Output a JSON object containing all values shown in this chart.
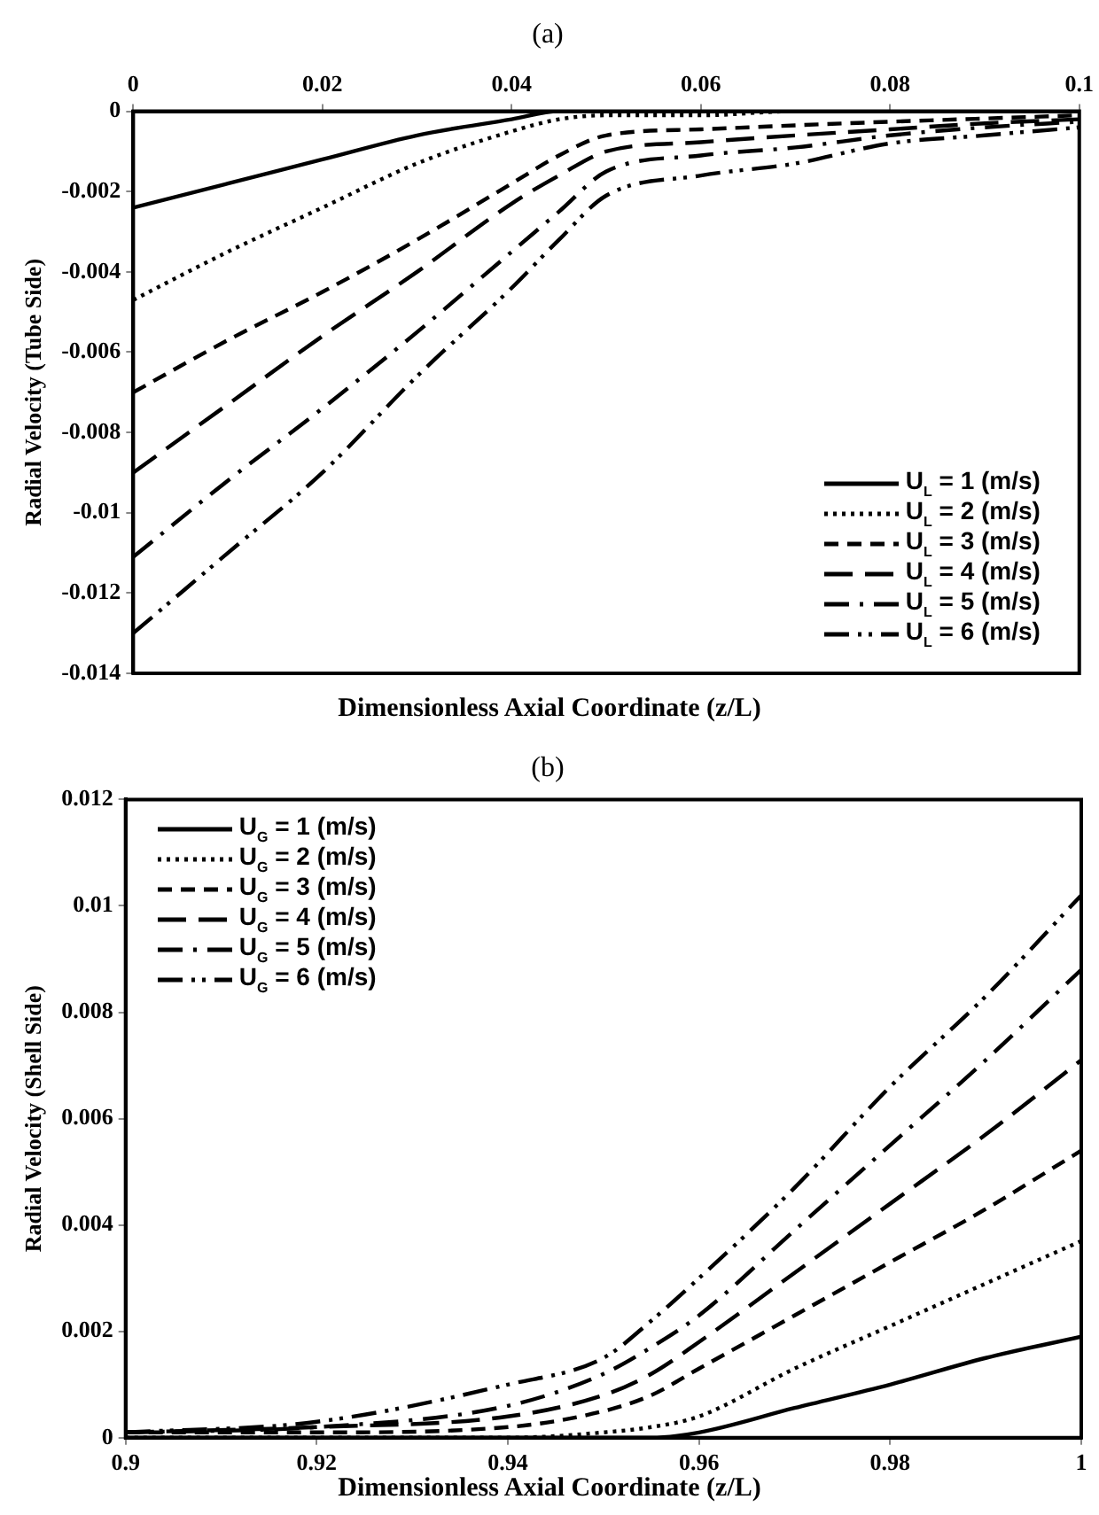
{
  "chart_data": [
    {
      "type": "line",
      "title": "(a)",
      "xlabel": "Dimensionless Axial Coordinate (z/L)",
      "ylabel": "Radial Velocity (Tube Side)",
      "x": [
        0,
        0.01,
        0.02,
        0.03,
        0.04,
        0.045,
        0.05,
        0.06,
        0.07,
        0.08,
        0.09,
        0.1
      ],
      "xlim": [
        0,
        0.1
      ],
      "xticks": [
        0,
        0.02,
        0.04,
        0.06,
        0.08,
        0.1
      ],
      "ylim": [
        -0.014,
        0
      ],
      "yticks": [
        -0.014,
        -0.012,
        -0.01,
        -0.008,
        -0.006,
        -0.004,
        -0.002,
        0
      ],
      "grid": false,
      "legend": "bottom right",
      "marker": "none",
      "series": [
        {
          "name": "U$_{L}$ = 1 (m/s)",
          "color": "#000000",
          "line_style": "solid",
          "values": [
            -0.0024,
            -0.0018,
            -0.0012,
            -0.0006,
            -0.0002,
            0,
            0,
            0,
            0,
            0,
            0,
            0
          ]
        },
        {
          "name": "U$_{L}$ = 2 (m/s)",
          "color": "#000000",
          "line_style": "dotted",
          "values": [
            -0.0047,
            -0.0035,
            -0.0024,
            -0.0013,
            -0.0005,
            -0.0002,
            -0.0001,
            -0.0001,
            0,
            0,
            0,
            0
          ]
        },
        {
          "name": "U$_{L}$ = 3 (m/s)",
          "color": "#000000",
          "line_style": "dashed",
          "values": [
            -0.007,
            -0.0057,
            -0.0045,
            -0.0032,
            -0.0018,
            -0.0011,
            -0.0006,
            -0.00045,
            -0.00035,
            -0.00026,
            -0.00018,
            -0.0001
          ]
        },
        {
          "name": "U$_{L}$ = 4 (m/s)",
          "color": "#000000",
          "line_style": "longdash",
          "values": [
            -0.009,
            -0.0073,
            -0.0056,
            -0.004,
            -0.0023,
            -0.0016,
            -0.001,
            -0.00077,
            -0.0006,
            -0.00045,
            -0.0003,
            -0.0002
          ]
        },
        {
          "name": "U$_{L}$ = 5 (m/s)",
          "color": "#000000",
          "line_style": "dashdot",
          "values": [
            -0.0111,
            -0.0092,
            -0.0074,
            -0.0055,
            -0.0035,
            -0.0025,
            -0.0015,
            -0.0011,
            -0.0009,
            -0.0006,
            -0.0004,
            -0.00026
          ]
        },
        {
          "name": "U$_{L}$ = 6 (m/s)",
          "color": "#000000",
          "line_style": "dashdotdot",
          "values": [
            -0.013,
            -0.011,
            -0.009,
            -0.0066,
            -0.0044,
            -0.0032,
            -0.0021,
            -0.0016,
            -0.0013,
            -0.0008,
            -0.0006,
            -0.0004
          ]
        }
      ]
    },
    {
      "type": "line",
      "title": "(b)",
      "xlabel": "Dimensionless Axial Coordinate (z/L)",
      "ylabel": "Radial Velocity (Shell Side)",
      "x": [
        0.9,
        0.92,
        0.94,
        0.95,
        0.955,
        0.96,
        0.97,
        0.98,
        0.99,
        1
      ],
      "xlim": [
        0.9,
        1
      ],
      "xticks": [
        0.9,
        0.92,
        0.94,
        0.96,
        0.98,
        1
      ],
      "ylim": [
        0,
        0.012
      ],
      "yticks": [
        0,
        0.002,
        0.004,
        0.006,
        0.008,
        0.01,
        0.012
      ],
      "grid": false,
      "legend": "top left",
      "marker": "none",
      "series": [
        {
          "name": "U$_{G}$ = 1 (m/s)",
          "color": "#000000",
          "line_style": "solid",
          "values": [
            0,
            0,
            0,
            0,
            0,
            0.0001,
            0.00056,
            0.001,
            0.0015,
            0.0019
          ]
        },
        {
          "name": "U$_{G}$ = 2 (m/s)",
          "color": "#000000",
          "line_style": "dotted",
          "values": [
            0,
            0,
            0,
            0.0001,
            0.0002,
            0.0004,
            0.0013,
            0.0021,
            0.0029,
            0.0037
          ]
        },
        {
          "name": "U$_{G}$ = 3 (m/s)",
          "color": "#000000",
          "line_style": "dashed",
          "values": [
            0.0001,
            0.0001,
            0.0002,
            0.0005,
            0.0008,
            0.0013,
            0.0023,
            0.0033,
            0.0043,
            0.0054
          ]
        },
        {
          "name": "U$_{G}$ = 4 (m/s)",
          "color": "#000000",
          "line_style": "longdash",
          "values": [
            0.0001,
            0.0002,
            0.0004,
            0.0008,
            0.0012,
            0.0018,
            0.0031,
            0.0044,
            0.0057,
            0.0071
          ]
        },
        {
          "name": "U$_{G}$ = 5 (m/s)",
          "color": "#000000",
          "line_style": "dashdot",
          "values": [
            0.0001,
            0.0002,
            0.0006,
            0.0012,
            0.0017,
            0.0023,
            0.0039,
            0.0055,
            0.0071,
            0.0088
          ]
        },
        {
          "name": "U$_{G}$ = 6 (m/s)",
          "color": "#000000",
          "line_style": "dashdotdot",
          "values": [
            0.0001,
            0.0003,
            0.001,
            0.0015,
            0.0022,
            0.003,
            0.0047,
            0.0066,
            0.0083,
            0.0102
          ]
        }
      ]
    }
  ]
}
